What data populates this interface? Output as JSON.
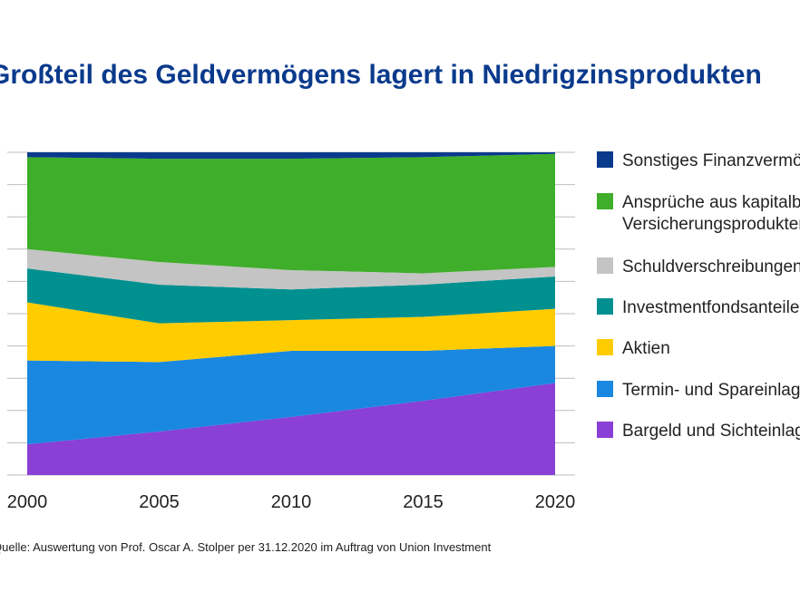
{
  "chart_data": {
    "type": "area",
    "stacked": true,
    "title": "Großteil des Geldvermögens lagert in Niedrigzinsprodukten",
    "x": [
      2000,
      2005,
      2010,
      2015,
      2020
    ],
    "x_tick_labels": [
      "2000",
      "2005",
      "2010",
      "2015",
      "2020"
    ],
    "ylim": [
      0,
      100
    ],
    "grid": true,
    "legend_position": "right",
    "series": [
      {
        "name": "Bargeld und Sichteinlagen",
        "color": "#8a3fd6",
        "values": [
          9.5,
          13.5,
          18,
          23,
          28.5
        ]
      },
      {
        "name": "Termin- und Spareinlagen",
        "color": "#1a88e0",
        "values": [
          26,
          21.5,
          20.5,
          15.5,
          11.5
        ]
      },
      {
        "name": "Aktien",
        "color": "#ffcc00",
        "values": [
          18,
          12,
          9.5,
          10.5,
          11.5
        ]
      },
      {
        "name": "Investmentfondsanteile",
        "color": "#009090",
        "values": [
          10.5,
          12,
          9.5,
          10,
          10
        ]
      },
      {
        "name": "Schuldverschreibungen",
        "color": "#c4c4c4",
        "values": [
          6,
          7,
          6,
          3.5,
          3
        ]
      },
      {
        "name": "Ansprüche aus kapitalbildenden Versicherungsprodukten",
        "color": "#3fae2a",
        "values": [
          28.5,
          32,
          34.5,
          36,
          35
        ]
      },
      {
        "name": "Sonstiges Finanzvermögen",
        "color": "#0a3a8c",
        "values": [
          1.5,
          2,
          2,
          1.5,
          0.5
        ]
      }
    ],
    "legend_lines": [
      [
        "Sonstiges Finanzvermögen"
      ],
      [
        "Ansprüche aus kapitalbildenden",
        "Versicherungsprodukten"
      ],
      [
        "Schuldverschreibungen"
      ],
      [
        "Investmentfondsanteile"
      ],
      [
        "Aktien"
      ],
      [
        "Termin- und Spareinlagen"
      ],
      [
        "Bargeld und Sichteinlagen"
      ]
    ]
  },
  "source_note": "Quelle: Auswertung von Prof. Oscar A. Stolper per 31.12.2020 im Auftrag von Union Investment"
}
